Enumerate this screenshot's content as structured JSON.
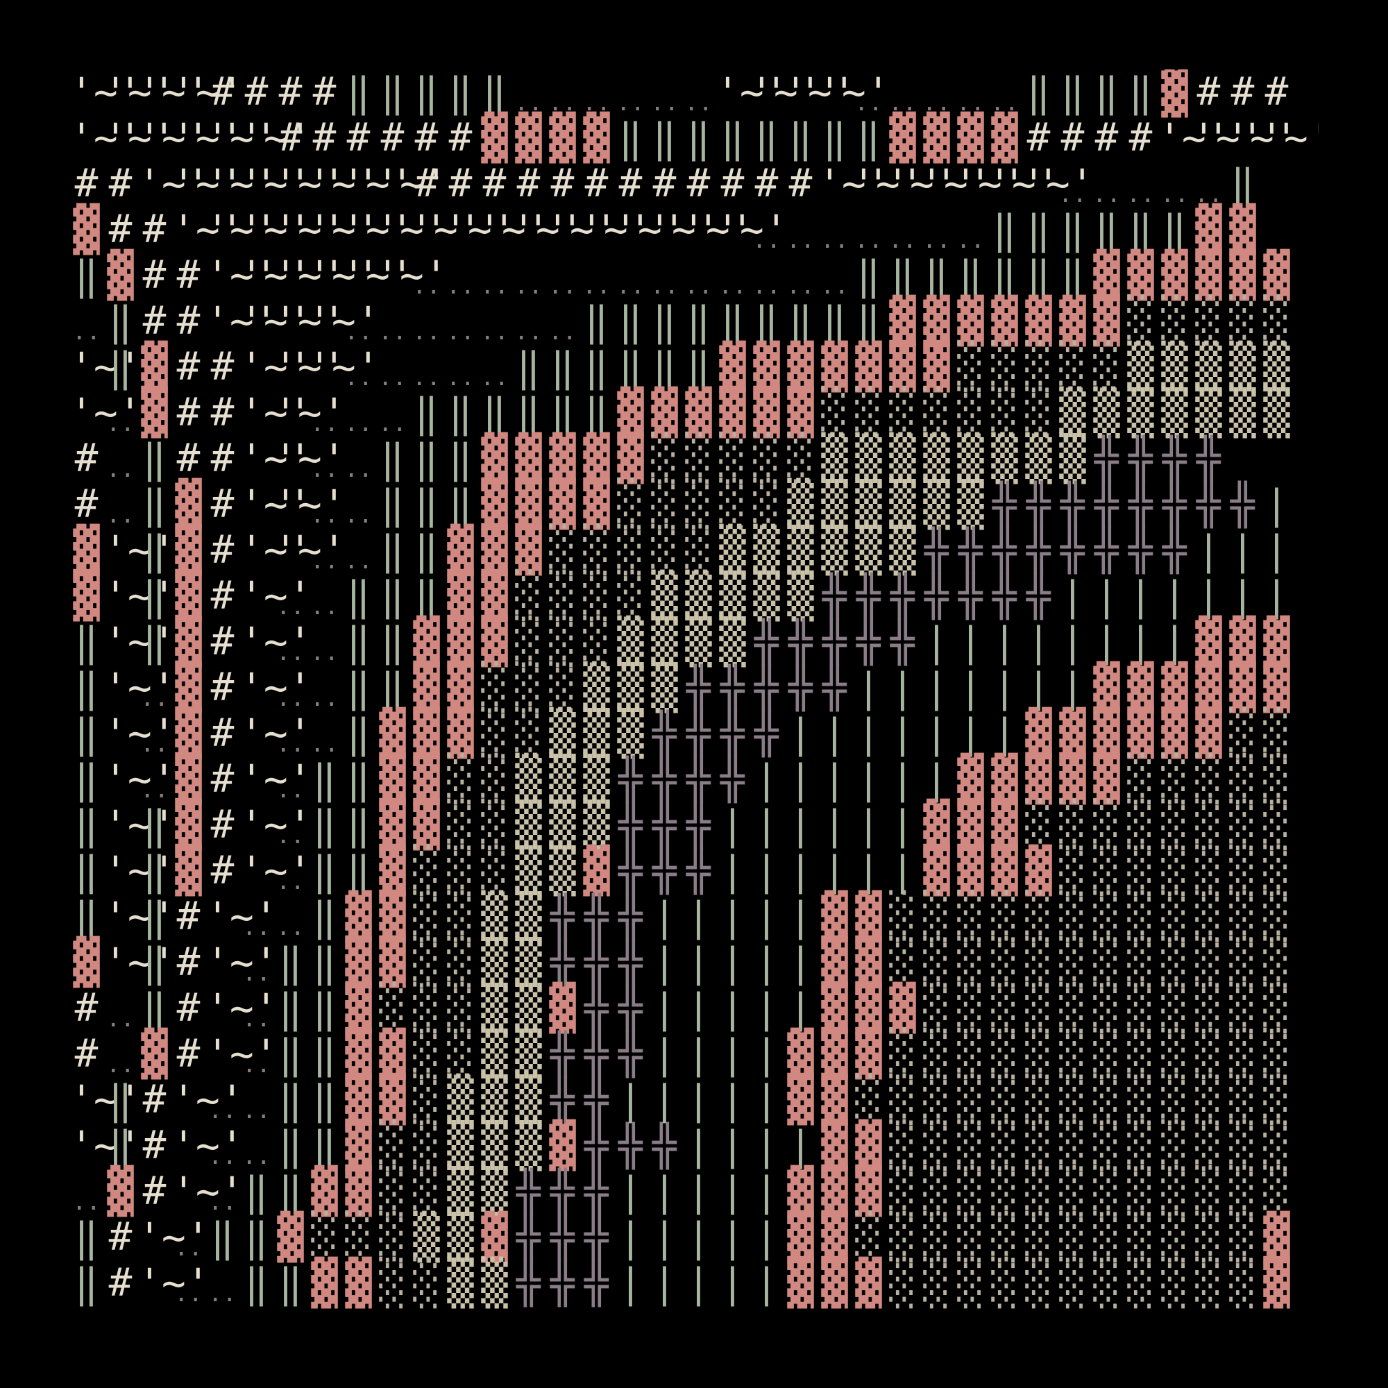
{
  "palette": {
    "~": "#e6dfd0",
    "#": "#e6dfd0",
    ".": "#8a7d80",
    "|": "#a7b5a0",
    "X": "#d08880",
    "s": "#b8b0a0",
    "m": "#c9c2a8",
    "+": "#8a7d88",
    "l": "#a7b5a0"
  },
  "glyphs": {
    "~": "'~'",
    "#": "#",
    ".": "..",
    "|": "‖",
    "X": "▓",
    "s": "░",
    "m": "▒",
    "+": "╬",
    "l": "|",
    " ": ""
  },
  "rows": [
    "~~~~####|||||......~~~~.....||||X###",
    "~~~~~~######XXXX||||||||XXXX####~~~~",
    "##~~~~~~~~############~~~~~~~.....|",
    "X##~~~~~~~~~~~~~~~~~.......||||||XX",
    "|X##~~~~~~.............|||||||XXXXXX",
    ".|##~~~~.......|||||||||XXXXXXXsssss",
    "~|X##~~~.....||||||XXXXXXXsssssmmmmm",
    "~.X##~~...||||||XXXXXXsssssssmmmmmmm",
    "#.|##~~..|||XXXXXsssssmmmmmmmm++++",
    "#.|X#~~..|||XXXXsssssmmmmmm++++++++l",
    "X~|X#~~..||XXXsssssmmmmmm++++++++lllll",
    "X~|X#~..|||XXssssmmmmm+++++++llllllll",
    "|~|X#~..||XXXsssmmmm+++++llllllllXXX",
    "|~.X#~..||XXsssmmm+++++lllllllXXXXXXX",
    "|~.X#~..|XXXssmmm++++lllllllXXXXXXsss",
    "|~.X#~.||XXssmmm++++llllllXXXXXsssss",
    "|~|X#~.||XXssmmm+++llllllXXXssssssss",
    "|~|X#~.||XsssmmX+++llllllXXXXsssssss",
    "|~|#~..|XXssmm+++lllllXXssssssssssss",
    "X~|#~.||XXssmm+++lllllXXsssssssssssss",
    "#.|#~.||XsssmmX++lllllXXXssssssssssss",
    "#.X#~.||XXssmm+++llllXXXsssssssssssss",
    "~|#~..||XXsmmm++lllllXXsssssssssssss",
    "~|#~..||XssmmmX+++llllXXsssssssssssss",
    ".X#~.||XXssmm+++lllllXXXssssssssssss",
    "|#~.||XsssmmX+++lllllXXssssssssssssX",
    "|#~..||XXssmm+++lllllXXXsssssssssssXX"
  ]
}
